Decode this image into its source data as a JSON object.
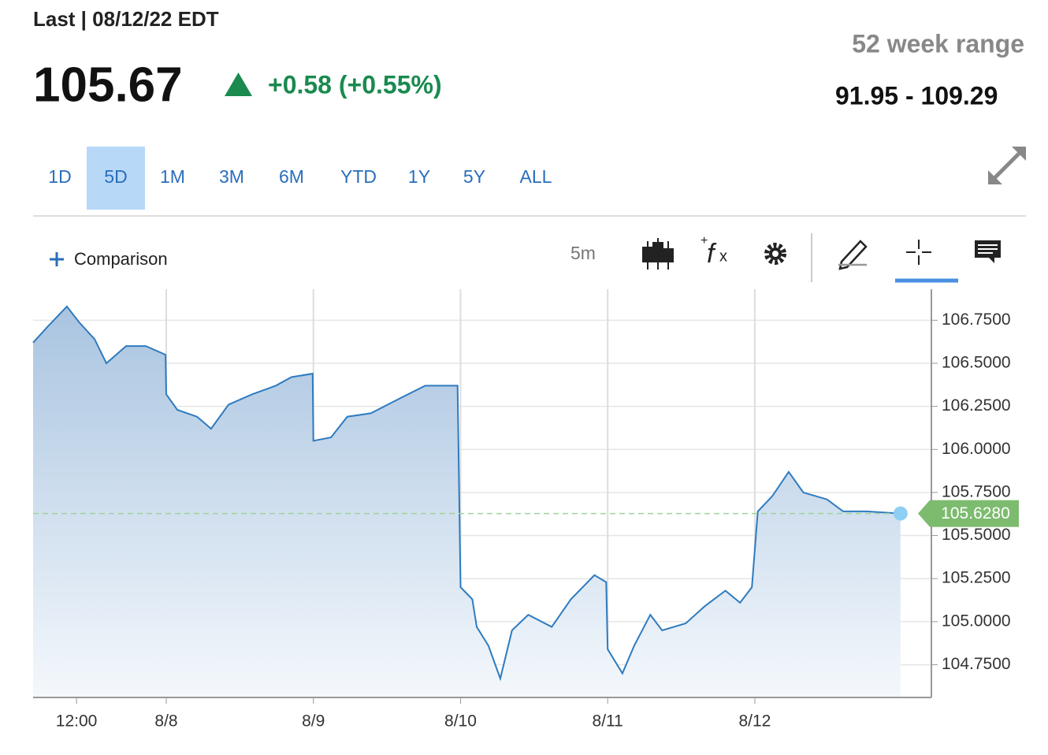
{
  "header": {
    "last_label": "Last | 08/12/22 EDT",
    "price": "105.67",
    "change": "+0.58 (+0.55%)",
    "range_title": "52 week range",
    "range_value": "91.95 - 109.29"
  },
  "ranges": [
    "1D",
    "5D",
    "1M",
    "3M",
    "6M",
    "YTD",
    "1Y",
    "5Y",
    "ALL"
  ],
  "active_range": "5D",
  "toolbar": {
    "comparison": "Comparison",
    "interval": "5m"
  },
  "chart_data": {
    "type": "line",
    "x": [
      -0.905,
      -0.809,
      -0.675,
      -0.594,
      -0.487,
      -0.407,
      -0.273,
      -0.139,
      -0.005,
      0,
      0.075,
      0.209,
      0.305,
      0.423,
      0.584,
      0.744,
      0.851,
      0.995,
      1.0,
      1.12,
      1.23,
      1.39,
      1.55,
      1.76,
      1.98,
      2.0,
      2.08,
      2.11,
      2.19,
      2.27,
      2.35,
      2.46,
      2.62,
      2.75,
      2.91,
      2.99,
      3.0,
      3.1,
      3.18,
      3.29,
      3.37,
      3.53,
      3.66,
      3.8,
      3.9,
      3.98,
      4.02,
      4.12,
      4.23,
      4.33,
      4.49,
      4.6,
      4.76,
      4.99
    ],
    "series": [
      {
        "color": "#2e7bbf",
        "values": [
          106.62,
          106.71,
          106.83,
          106.74,
          106.64,
          106.5,
          106.6,
          106.6,
          106.55,
          106.32,
          106.23,
          106.19,
          106.12,
          106.26,
          106.32,
          106.37,
          106.42,
          106.44,
          106.05,
          106.07,
          106.19,
          106.21,
          106.28,
          106.37,
          106.37,
          105.2,
          105.13,
          104.97,
          104.86,
          104.67,
          104.95,
          105.04,
          104.97,
          105.13,
          105.27,
          105.23,
          104.84,
          104.7,
          104.86,
          105.04,
          104.95,
          104.99,
          105.09,
          105.18,
          105.11,
          105.2,
          105.64,
          105.73,
          105.87,
          105.75,
          105.71,
          105.64,
          105.64,
          105.628
        ]
      }
    ],
    "xlim": [
      -0.905,
      5.2
    ],
    "ylim": [
      104.56,
      106.93
    ],
    "xticks": [
      {
        "value": -0.61,
        "label": "12:00"
      },
      {
        "value": 0,
        "label": "8/8"
      },
      {
        "value": 1,
        "label": "8/9"
      },
      {
        "value": 2,
        "label": "8/10"
      },
      {
        "value": 3,
        "label": "8/11"
      },
      {
        "value": 4,
        "label": "8/12"
      }
    ],
    "yticks": [
      {
        "value": 104.75,
        "label": "104.7500"
      },
      {
        "value": 105,
        "label": "105.0000"
      },
      {
        "value": 105.25,
        "label": "105.2500"
      },
      {
        "value": 105.5,
        "label": "105.5000"
      },
      {
        "value": 105.75,
        "label": "105.7500"
      },
      {
        "value": 106,
        "label": "106.0000"
      },
      {
        "value": 106.25,
        "label": "106.2500"
      },
      {
        "value": 106.5,
        "label": "106.5000"
      },
      {
        "value": 106.75,
        "label": "106.7500"
      }
    ],
    "last_marker": {
      "value": 105.628,
      "label": "105.6280",
      "color": "#7dbb6f"
    },
    "grid": true
  }
}
